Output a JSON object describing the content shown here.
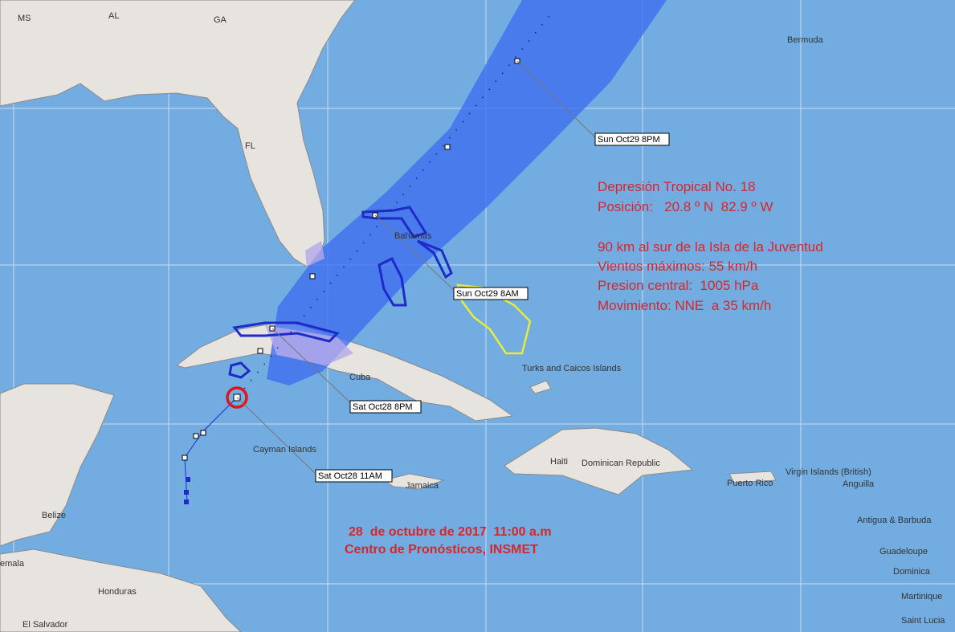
{
  "places": [
    "MS",
    "AL",
    "GA",
    "Bermuda",
    "FL",
    "Bahamas",
    "Turks and Caicos Islands",
    "Cuba",
    "Haiti",
    "Dominican Republic",
    "Puerto Rico",
    "Virgin Islands (British)",
    "Anguilla",
    "Antigua & Barbuda",
    "Guadeloupe",
    "Dominica",
    "Martinique",
    "Saint Lucia",
    "Cayman Islands",
    "Jamaica",
    "Belize",
    "emala",
    "Honduras",
    "El Salvador"
  ],
  "forecast_times": [
    "Sun Oct29 8PM",
    "Sun Oct29 8AM",
    "Sat Oct28 8PM",
    "Sat Oct28 11AM"
  ],
  "info": {
    "lines": [
      "Depresión Tropical No. 18",
      "Posición:   20.8 º N  82.9 º W",
      "90 km al sur de la Isla de la Juventud",
      "Vientos máximos: 55 km/h",
      "Presion central:  1005 hPa",
      "Movimiento: NNE  a 35 km/h"
    ]
  },
  "footer": {
    "date": "28  de octubre de 2017  11:00 a.m",
    "source": "Centro de Pronósticos, INSMET"
  }
}
